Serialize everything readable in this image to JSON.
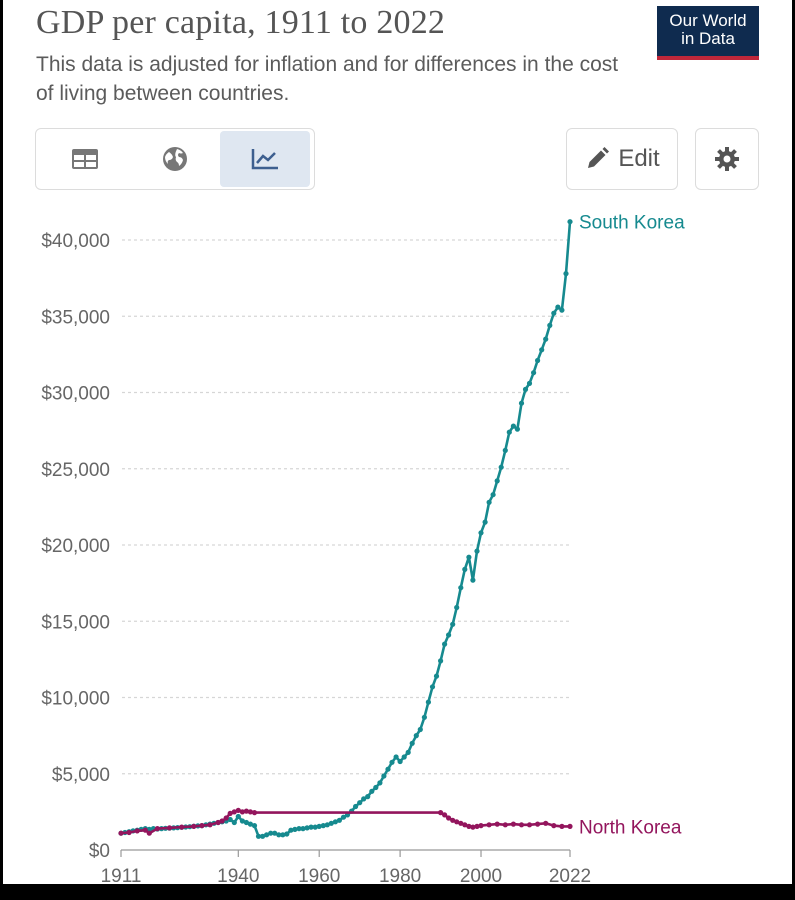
{
  "header": {
    "title": "GDP per capita, 1911 to 2022",
    "subtitle": "This data is adjusted for inflation and for differences in the cost of living between countries.",
    "logo_line1": "Our World",
    "logo_line2": "in Data"
  },
  "toolbar": {
    "tabs": [
      {
        "icon": "table-icon",
        "active": false
      },
      {
        "icon": "globe-icon",
        "active": false
      },
      {
        "icon": "line-chart-icon",
        "active": true
      }
    ],
    "edit_label": "Edit"
  },
  "colors": {
    "south_korea": "#168a8f",
    "north_korea": "#93155d",
    "grid": "#d6d6d6",
    "text": "#666666"
  },
  "chart_data": {
    "type": "line",
    "title": "GDP per capita, 1911 to 2022",
    "xlim": [
      1911,
      2022
    ],
    "ylim": [
      0,
      42000
    ],
    "x_ticks": [
      {
        "value": 1911,
        "label": "1911"
      },
      {
        "value": 1940,
        "label": "1940"
      },
      {
        "value": 1960,
        "label": "1960"
      },
      {
        "value": 1980,
        "label": "1980"
      },
      {
        "value": 2000,
        "label": "2000"
      },
      {
        "value": 2022,
        "label": "2022"
      }
    ],
    "y_ticks": [
      {
        "value": 0,
        "label": "$0"
      },
      {
        "value": 5000,
        "label": "$5,000"
      },
      {
        "value": 10000,
        "label": "$10,000"
      },
      {
        "value": 15000,
        "label": "$15,000"
      },
      {
        "value": 20000,
        "label": "$20,000"
      },
      {
        "value": 25000,
        "label": "$25,000"
      },
      {
        "value": 30000,
        "label": "$30,000"
      },
      {
        "value": 35000,
        "label": "$35,000"
      },
      {
        "value": 40000,
        "label": "$40,000"
      }
    ],
    "grid": "horizontal-dashed",
    "legend": "inline-right",
    "series": [
      {
        "name": "South Korea",
        "points": [
          [
            1911,
            1100
          ],
          [
            1912,
            1150
          ],
          [
            1913,
            1200
          ],
          [
            1914,
            1250
          ],
          [
            1915,
            1300
          ],
          [
            1916,
            1350
          ],
          [
            1917,
            1400
          ],
          [
            1918,
            1350
          ],
          [
            1919,
            1400
          ],
          [
            1920,
            1380
          ],
          [
            1921,
            1400
          ],
          [
            1922,
            1420
          ],
          [
            1923,
            1430
          ],
          [
            1924,
            1450
          ],
          [
            1925,
            1470
          ],
          [
            1926,
            1490
          ],
          [
            1927,
            1510
          ],
          [
            1928,
            1530
          ],
          [
            1929,
            1560
          ],
          [
            1930,
            1580
          ],
          [
            1931,
            1600
          ],
          [
            1932,
            1650
          ],
          [
            1933,
            1700
          ],
          [
            1934,
            1750
          ],
          [
            1935,
            1800
          ],
          [
            1936,
            1850
          ],
          [
            1937,
            1900
          ],
          [
            1938,
            2000
          ],
          [
            1939,
            1800
          ],
          [
            1940,
            2200
          ],
          [
            1941,
            1900
          ],
          [
            1942,
            1800
          ],
          [
            1943,
            1700
          ],
          [
            1944,
            1600
          ],
          [
            1945,
            900
          ],
          [
            1946,
            900
          ],
          [
            1947,
            1000
          ],
          [
            1948,
            1100
          ],
          [
            1949,
            1100
          ],
          [
            1950,
            1000
          ],
          [
            1951,
            1000
          ],
          [
            1952,
            1050
          ],
          [
            1953,
            1300
          ],
          [
            1954,
            1350
          ],
          [
            1955,
            1400
          ],
          [
            1956,
            1400
          ],
          [
            1957,
            1450
          ],
          [
            1958,
            1500
          ],
          [
            1959,
            1500
          ],
          [
            1960,
            1550
          ],
          [
            1961,
            1600
          ],
          [
            1962,
            1650
          ],
          [
            1963,
            1750
          ],
          [
            1964,
            1850
          ],
          [
            1965,
            1950
          ],
          [
            1966,
            2150
          ],
          [
            1967,
            2300
          ],
          [
            1968,
            2550
          ],
          [
            1969,
            2850
          ],
          [
            1970,
            3100
          ],
          [
            1971,
            3350
          ],
          [
            1972,
            3500
          ],
          [
            1973,
            3850
          ],
          [
            1974,
            4100
          ],
          [
            1975,
            4400
          ],
          [
            1976,
            4850
          ],
          [
            1977,
            5300
          ],
          [
            1978,
            5750
          ],
          [
            1979,
            6100
          ],
          [
            1980,
            5800
          ],
          [
            1981,
            6100
          ],
          [
            1982,
            6400
          ],
          [
            1983,
            7000
          ],
          [
            1984,
            7500
          ],
          [
            1985,
            7900
          ],
          [
            1986,
            8700
          ],
          [
            1987,
            9700
          ],
          [
            1988,
            10700
          ],
          [
            1989,
            11400
          ],
          [
            1990,
            12400
          ],
          [
            1991,
            13500
          ],
          [
            1992,
            14100
          ],
          [
            1993,
            14800
          ],
          [
            1994,
            15900
          ],
          [
            1995,
            17200
          ],
          [
            1996,
            18400
          ],
          [
            1997,
            19200
          ],
          [
            1998,
            17700
          ],
          [
            1999,
            19600
          ],
          [
            2000,
            20800
          ],
          [
            2001,
            21500
          ],
          [
            2002,
            22800
          ],
          [
            2003,
            23300
          ],
          [
            2004,
            24200
          ],
          [
            2005,
            25100
          ],
          [
            2006,
            26200
          ],
          [
            2007,
            27400
          ],
          [
            2008,
            27800
          ],
          [
            2009,
            27600
          ],
          [
            2010,
            29300
          ],
          [
            2011,
            30200
          ],
          [
            2012,
            30600
          ],
          [
            2013,
            31300
          ],
          [
            2014,
            32100
          ],
          [
            2015,
            32800
          ],
          [
            2016,
            33500
          ],
          [
            2017,
            34400
          ],
          [
            2018,
            35200
          ],
          [
            2019,
            35600
          ],
          [
            2020,
            35400
          ],
          [
            2021,
            37800
          ],
          [
            2022,
            41200
          ]
        ]
      },
      {
        "name": "North Korea",
        "points": [
          [
            1911,
            1100
          ],
          [
            1913,
            1150
          ],
          [
            1915,
            1250
          ],
          [
            1917,
            1300
          ],
          [
            1918,
            1100
          ],
          [
            1920,
            1400
          ],
          [
            1923,
            1450
          ],
          [
            1926,
            1500
          ],
          [
            1929,
            1550
          ],
          [
            1931,
            1600
          ],
          [
            1933,
            1650
          ],
          [
            1935,
            1800
          ],
          [
            1936,
            1900
          ],
          [
            1937,
            2100
          ],
          [
            1938,
            2400
          ],
          [
            1939,
            2500
          ],
          [
            1940,
            2600
          ],
          [
            1941,
            2500
          ],
          [
            1942,
            2550
          ],
          [
            1943,
            2500
          ],
          [
            1944,
            2450
          ],
          [
            1990,
            2450
          ],
          [
            1991,
            2300
          ],
          [
            1992,
            2100
          ],
          [
            1993,
            1950
          ],
          [
            1994,
            1850
          ],
          [
            1995,
            1750
          ],
          [
            1996,
            1650
          ],
          [
            1997,
            1550
          ],
          [
            1998,
            1500
          ],
          [
            1999,
            1550
          ],
          [
            2000,
            1600
          ],
          [
            2002,
            1650
          ],
          [
            2004,
            1700
          ],
          [
            2006,
            1650
          ],
          [
            2008,
            1700
          ],
          [
            2010,
            1650
          ],
          [
            2012,
            1650
          ],
          [
            2014,
            1700
          ],
          [
            2016,
            1750
          ],
          [
            2018,
            1600
          ],
          [
            2020,
            1550
          ],
          [
            2022,
            1550
          ]
        ]
      }
    ]
  }
}
